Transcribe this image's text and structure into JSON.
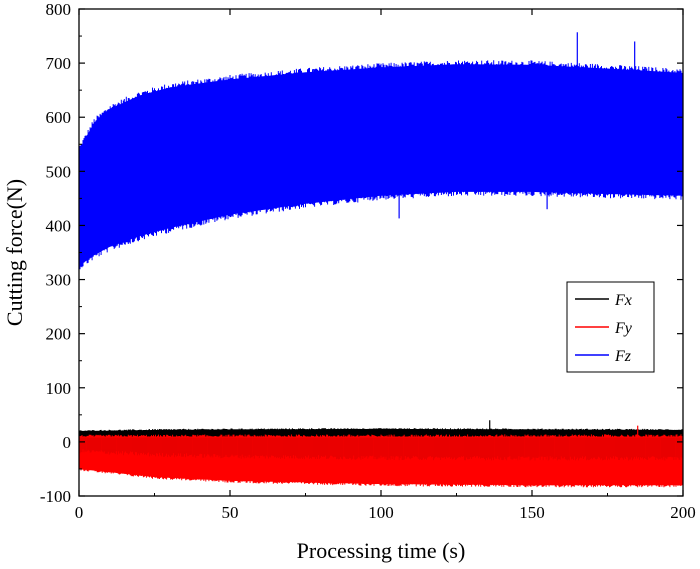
{
  "chart_data": {
    "type": "line",
    "xlabel": "Processing time (s)",
    "ylabel": "Cutting force(N)",
    "xlim": [
      0,
      200
    ],
    "ylim": [
      -100,
      800
    ],
    "xticks": [
      "0",
      "50",
      "100",
      "150",
      "200"
    ],
    "yticks": [
      "-100",
      "0",
      "100",
      "200",
      "300",
      "400",
      "500",
      "600",
      "700",
      "800"
    ],
    "grid": false,
    "legend_position": "right",
    "series": [
      {
        "name": "Fx",
        "color": "#000000",
        "x": [
          0,
          25,
          50,
          100,
          150,
          200
        ],
        "upper": [
          20,
          22,
          23,
          24,
          23,
          22
        ],
        "lower": [
          8,
          9,
          10,
          10,
          10,
          10
        ],
        "spikes": [
          {
            "x": 136,
            "y": 40
          }
        ]
      },
      {
        "name": "Fy",
        "color": "#ff0000",
        "x": [
          0,
          25,
          50,
          100,
          150,
          200
        ],
        "upper": [
          10,
          10,
          10,
          10,
          10,
          10
        ],
        "lower": [
          -50,
          -65,
          -72,
          -78,
          -80,
          -80
        ],
        "spikes": [
          {
            "x": 16,
            "y": -40
          },
          {
            "x": 160,
            "y": -82
          },
          {
            "x": 185,
            "y": 30
          }
        ]
      },
      {
        "name": "Fz",
        "color": "#0000ff",
        "x": [
          0,
          5,
          10,
          20,
          30,
          50,
          75,
          100,
          125,
          150,
          175,
          200
        ],
        "upper": [
          540,
          590,
          615,
          640,
          655,
          670,
          683,
          692,
          698,
          697,
          690,
          682
        ],
        "lower": [
          325,
          345,
          360,
          380,
          395,
          420,
          440,
          455,
          462,
          462,
          458,
          455
        ],
        "spikes": [
          {
            "x": 165,
            "y": 757
          },
          {
            "x": 184,
            "y": 740
          },
          {
            "x": 106,
            "y": 413
          },
          {
            "x": 155,
            "y": 430
          }
        ]
      }
    ]
  }
}
